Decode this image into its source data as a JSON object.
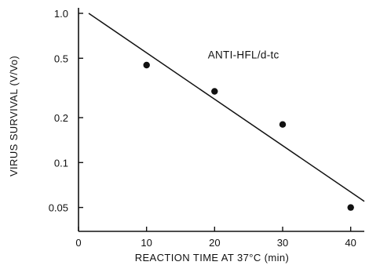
{
  "chart_data": {
    "type": "scatter",
    "title": "",
    "xlabel": "REACTION TIME AT 37°C (min)",
    "ylabel": "VIRUS SURVIVAL (V/Vo)",
    "x_scale": "linear",
    "y_scale": "log",
    "xlim": [
      0,
      42
    ],
    "ylim": [
      0.04,
      1.0
    ],
    "x_ticks": [
      0,
      10,
      20,
      30,
      40
    ],
    "x_tick_labels": [
      "0",
      "10",
      "20",
      "30",
      "40"
    ],
    "y_ticks": [
      1.0,
      0.5,
      0.2,
      0.1,
      0.05
    ],
    "y_tick_labels": [
      "1.0",
      "0.5",
      "0.2",
      "0.1",
      "0.05"
    ],
    "grid": false,
    "series": [
      {
        "kind": "points",
        "x": [
          10,
          20,
          30,
          40
        ],
        "y": [
          0.45,
          0.3,
          0.18,
          0.05
        ]
      },
      {
        "kind": "fit-line",
        "x": [
          1.5,
          42
        ],
        "y": [
          1.0,
          0.055
        ]
      }
    ],
    "annotations": [
      {
        "text": "ANTI-HFL/d-tc",
        "x": 19,
        "y": 0.47
      }
    ]
  }
}
